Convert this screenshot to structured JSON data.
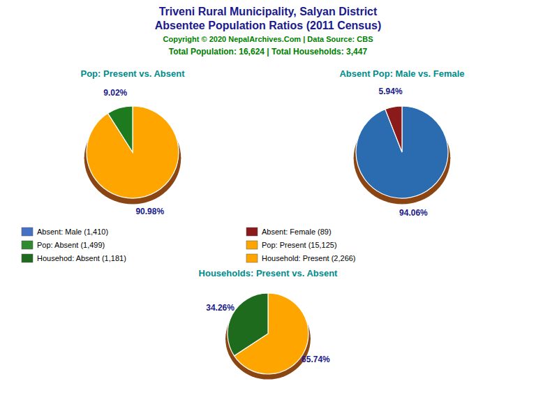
{
  "title": "Triveni Rural Municipality, Salyan District",
  "subtitle": "Absentee Population Ratios (2011 Census)",
  "annotations": [
    "Copyright © 2020 NepalArchives.Com | Data Source: CBS",
    "Total Population: 16,624 | Total Households: 3,447"
  ],
  "legend_entries": [
    {
      "name": "Absent: Male (1,410)",
      "color": "#4472C4"
    },
    {
      "name": "Absent: Female (89)",
      "color": "#8B1A1A"
    },
    {
      "name": "Pop: Absent (1,499)",
      "color": "#2E8B2E"
    },
    {
      "name": "Pop: Present (15,125)",
      "color": "#FFA500"
    },
    {
      "name": "Househod: Absent (1,181)",
      "color": "#1E6B1E"
    },
    {
      "name": "Household: Present (2,266)",
      "color": "#FFA500"
    }
  ],
  "chart_data": [
    {
      "type": "pie",
      "title": "Pop: Present vs. Absent",
      "values": [
        90.98,
        9.02
      ],
      "value_labels": [
        "90.98%",
        "9.02%"
      ],
      "colors": [
        "#FFA500",
        "#1E7A1E"
      ],
      "data_labels": true
    },
    {
      "type": "pie",
      "title": "Absent Pop: Male vs. Female",
      "values": [
        94.06,
        5.94
      ],
      "value_labels": [
        "94.06%",
        "5.94%"
      ],
      "colors": [
        "#2B6CB0",
        "#8B1A1A"
      ],
      "data_labels": true
    },
    {
      "type": "pie",
      "title": "Households: Present vs. Absent",
      "values": [
        65.74,
        34.26
      ],
      "value_labels": [
        "65.74%",
        "34.26%"
      ],
      "colors": [
        "#FFA500",
        "#1E6B1E"
      ],
      "data_labels": true
    }
  ]
}
